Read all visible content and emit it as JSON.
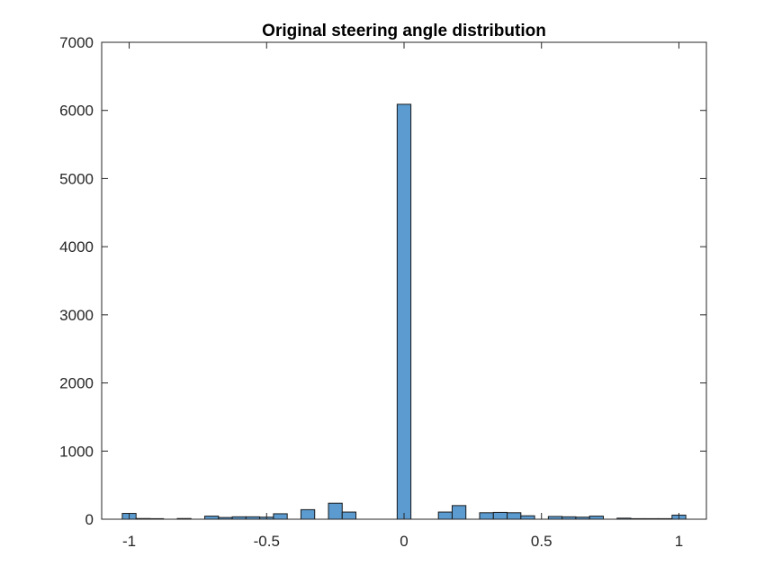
{
  "chart_data": {
    "type": "bar",
    "title": "Original steering angle distribution",
    "xlabel": "",
    "ylabel": "",
    "xlim": [
      -1.1,
      1.1
    ],
    "ylim": [
      0,
      7000
    ],
    "grid": false,
    "bar_color": "#5B9BD0",
    "edge_color": "#1a1a1a",
    "axis_color": "#262626",
    "bin_width": 0.05,
    "x_ticks": [
      -1,
      -0.5,
      0,
      0.5,
      1
    ],
    "x_tick_labels": [
      "-1",
      "-0.5",
      "0",
      "0.5",
      "1"
    ],
    "y_ticks": [
      0,
      1000,
      2000,
      3000,
      4000,
      5000,
      6000,
      7000
    ],
    "y_tick_labels": [
      "0",
      "1000",
      "2000",
      "3000",
      "4000",
      "5000",
      "6000",
      "7000"
    ],
    "bins": [
      {
        "x": -1.0,
        "value": 85
      },
      {
        "x": -0.95,
        "value": 10
      },
      {
        "x": -0.9,
        "value": 8
      },
      {
        "x": -0.8,
        "value": 10
      },
      {
        "x": -0.7,
        "value": 45
      },
      {
        "x": -0.65,
        "value": 25
      },
      {
        "x": -0.6,
        "value": 35
      },
      {
        "x": -0.55,
        "value": 35
      },
      {
        "x": -0.5,
        "value": 30
      },
      {
        "x": -0.45,
        "value": 80
      },
      {
        "x": -0.35,
        "value": 140
      },
      {
        "x": -0.25,
        "value": 235
      },
      {
        "x": -0.2,
        "value": 105
      },
      {
        "x": 0.0,
        "value": 6090
      },
      {
        "x": 0.15,
        "value": 105
      },
      {
        "x": 0.2,
        "value": 200
      },
      {
        "x": 0.3,
        "value": 95
      },
      {
        "x": 0.35,
        "value": 100
      },
      {
        "x": 0.4,
        "value": 95
      },
      {
        "x": 0.45,
        "value": 50
      },
      {
        "x": 0.55,
        "value": 40
      },
      {
        "x": 0.6,
        "value": 35
      },
      {
        "x": 0.65,
        "value": 30
      },
      {
        "x": 0.7,
        "value": 45
      },
      {
        "x": 0.8,
        "value": 15
      },
      {
        "x": 0.85,
        "value": 8
      },
      {
        "x": 0.9,
        "value": 8
      },
      {
        "x": 0.95,
        "value": 8
      },
      {
        "x": 1.0,
        "value": 60
      }
    ]
  }
}
